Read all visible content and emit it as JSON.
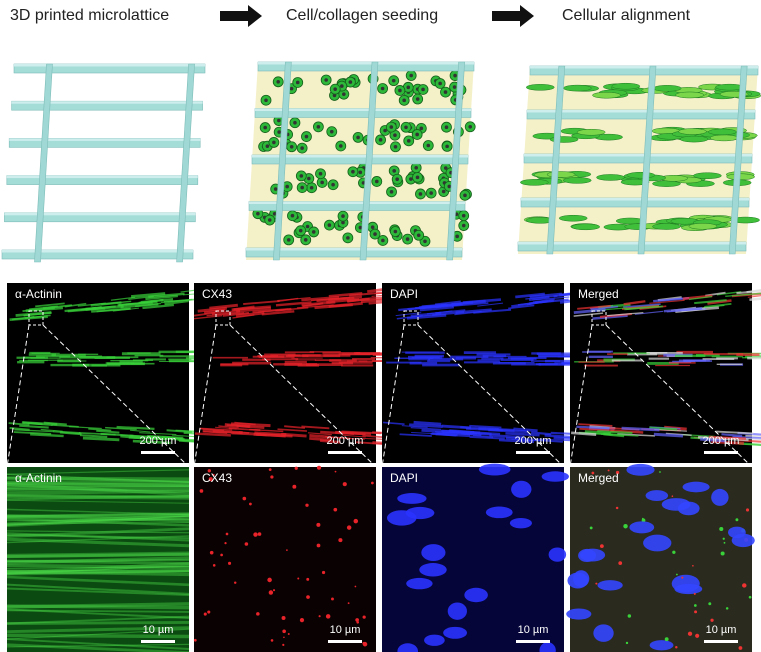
{
  "steps": [
    "3D printed microlattice",
    "Cell/collagen seeding",
    "Cellular alignment"
  ],
  "panels": [
    {
      "labels": [
        "α-Actinin",
        "CX43",
        "DAPI",
        "Merged"
      ],
      "scale": "200 µm"
    },
    {
      "labels": [
        "α-Actinin",
        "CX43",
        "DAPI",
        "Merged"
      ],
      "scale": "10 µm"
    }
  ]
}
